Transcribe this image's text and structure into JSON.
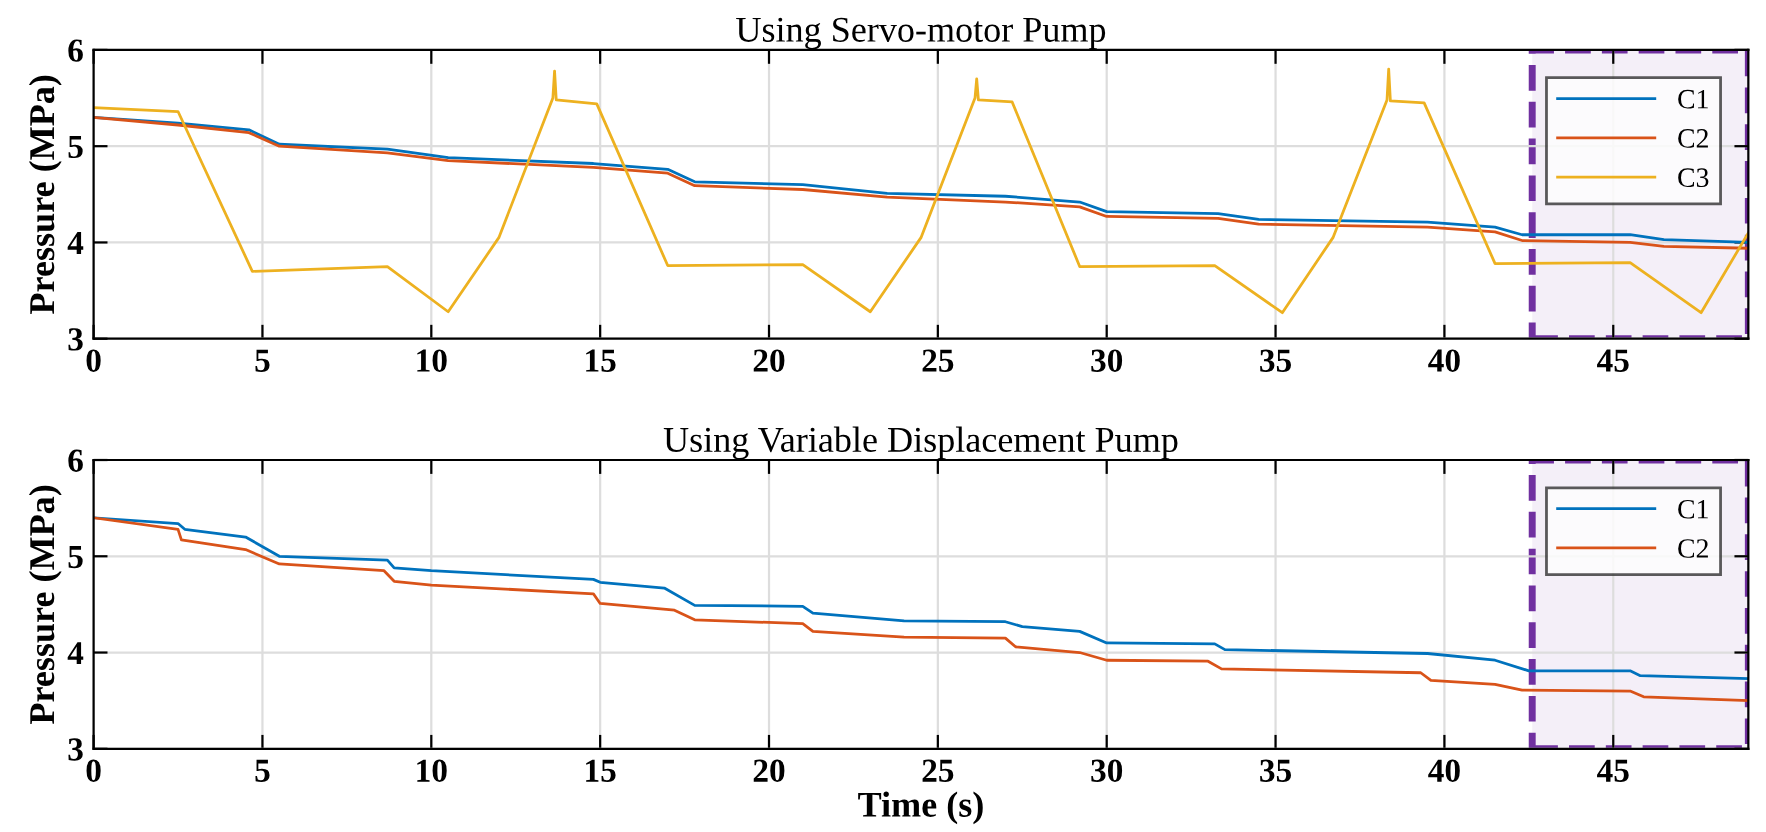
{
  "chart_data": [
    {
      "type": "line",
      "title": "Using Servo-motor Pump",
      "ylabel": "Pressure (MPa)",
      "xlim": [
        0,
        49
      ],
      "ylim": [
        3,
        6
      ],
      "xticks": [
        0,
        5,
        10,
        15,
        20,
        25,
        30,
        35,
        40,
        45
      ],
      "yticks": [
        3,
        4,
        5,
        6
      ],
      "grid": true,
      "legend": "top right",
      "bands": [
        {
          "axis": "x",
          "from": 42.6,
          "to": 49,
          "color": "#7030a0"
        }
      ],
      "series": [
        {
          "name": "C1",
          "color": "#0072bd",
          "x": [
            0,
            2.5,
            4.6,
            5.5,
            8.7,
            10.5,
            14.8,
            17,
            17.8,
            21,
            23.5,
            27,
            29.2,
            30,
            33.3,
            34.5,
            39.5,
            41.5,
            42.3,
            45.5,
            46.5,
            49
          ],
          "values": [
            5.3,
            5.24,
            5.17,
            5.02,
            4.97,
            4.88,
            4.82,
            4.76,
            4.63,
            4.6,
            4.51,
            4.48,
            4.42,
            4.32,
            4.3,
            4.24,
            4.21,
            4.16,
            4.08,
            4.08,
            4.03,
            4.0
          ]
        },
        {
          "name": "C2",
          "color": "#d95319",
          "x": [
            0,
            2.5,
            4.6,
            5.5,
            8.7,
            10.5,
            14.8,
            17,
            17.8,
            21,
            23.5,
            27,
            29.2,
            30,
            33.3,
            34.5,
            39.5,
            41.5,
            42.3,
            45.5,
            46.5,
            49
          ],
          "values": [
            5.3,
            5.22,
            5.14,
            5.0,
            4.93,
            4.85,
            4.78,
            4.72,
            4.59,
            4.55,
            4.47,
            4.42,
            4.37,
            4.27,
            4.25,
            4.19,
            4.16,
            4.11,
            4.02,
            4.0,
            3.96,
            3.94
          ]
        },
        {
          "name": "C3",
          "color": "#edb120",
          "x": [
            0,
            2.5,
            4.7,
            8.7,
            10.5,
            12,
            13.6,
            13.65,
            13.7,
            14.9,
            17,
            21,
            23,
            24.5,
            26.1,
            26.15,
            26.2,
            27.2,
            29.2,
            33.2,
            35.2,
            36.7,
            38.3,
            38.35,
            38.4,
            39.4,
            41.5,
            45.5,
            47.6,
            49
          ],
          "values": [
            5.4,
            5.36,
            3.7,
            3.75,
            3.28,
            4.05,
            5.5,
            5.78,
            5.48,
            5.44,
            3.76,
            3.77,
            3.28,
            4.05,
            5.5,
            5.7,
            5.48,
            5.46,
            3.75,
            3.76,
            3.27,
            4.05,
            5.48,
            5.8,
            5.47,
            5.45,
            3.78,
            3.79,
            3.27,
            4.1
          ]
        }
      ]
    },
    {
      "type": "line",
      "title": "Using Variable Displacement Pump",
      "xlabel": "Time (s)",
      "ylabel": "Pressure (MPa)",
      "xlim": [
        0,
        49
      ],
      "ylim": [
        3,
        6
      ],
      "xticks": [
        0,
        5,
        10,
        15,
        20,
        25,
        30,
        35,
        40,
        45
      ],
      "yticks": [
        3,
        4,
        5,
        6
      ],
      "grid": true,
      "legend": "top right",
      "bands": [
        {
          "axis": "x",
          "from": 42.6,
          "to": 49,
          "color": "#7030a0"
        }
      ],
      "series": [
        {
          "name": "C1",
          "color": "#0072bd",
          "x": [
            0,
            2.5,
            2.7,
            4.5,
            5.5,
            8.7,
            8.9,
            10,
            14.8,
            15,
            16.9,
            17.8,
            21,
            21.3,
            24,
            27,
            27.5,
            29.2,
            30,
            33.2,
            33.5,
            39.5,
            41.5,
            42.5,
            45.5,
            45.8,
            49
          ],
          "values": [
            5.4,
            5.34,
            5.28,
            5.2,
            5.0,
            4.96,
            4.88,
            4.85,
            4.76,
            4.73,
            4.67,
            4.49,
            4.48,
            4.41,
            4.33,
            4.32,
            4.27,
            4.22,
            4.1,
            4.09,
            4.03,
            3.99,
            3.92,
            3.81,
            3.81,
            3.76,
            3.73
          ]
        },
        {
          "name": "C2",
          "color": "#d95319",
          "x": [
            0,
            2.5,
            2.6,
            4.5,
            5.5,
            8.6,
            8.9,
            10,
            14.8,
            15,
            17.2,
            17.8,
            21,
            21.3,
            24,
            27,
            27.3,
            29.2,
            30,
            33,
            33.4,
            39.3,
            39.6,
            41.5,
            42.3,
            45.5,
            45.9,
            49
          ],
          "values": [
            5.4,
            5.28,
            5.17,
            5.07,
            4.92,
            4.85,
            4.74,
            4.7,
            4.61,
            4.51,
            4.44,
            4.34,
            4.3,
            4.22,
            4.16,
            4.15,
            4.06,
            4.0,
            3.92,
            3.91,
            3.83,
            3.79,
            3.71,
            3.67,
            3.61,
            3.6,
            3.54,
            3.5
          ]
        }
      ]
    }
  ]
}
